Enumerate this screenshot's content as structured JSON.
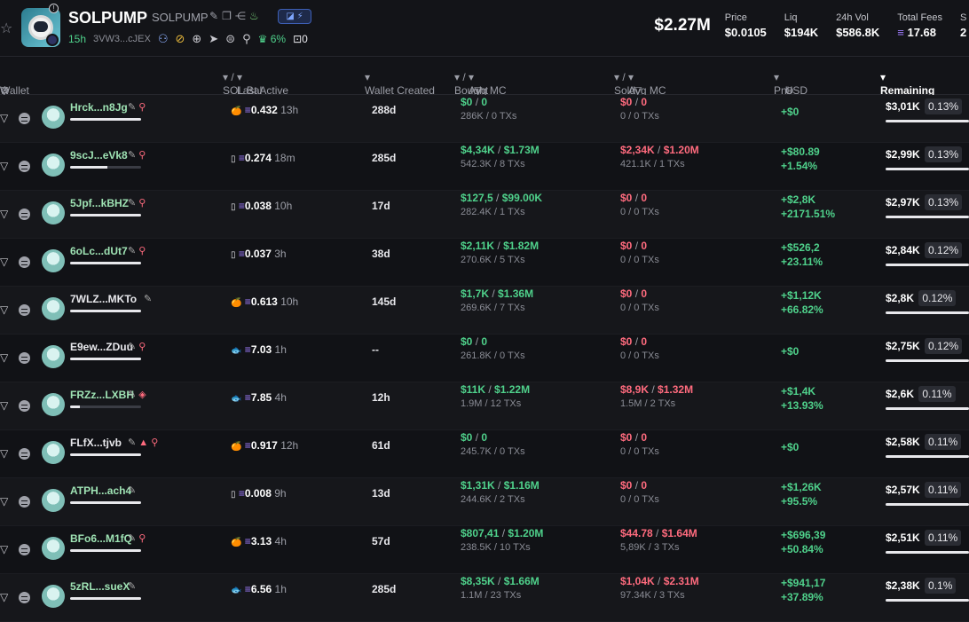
{
  "token": {
    "name": "SOLPUMP",
    "ticker": "SOLPUMP",
    "age": "15h",
    "address": "3VW3...cJEX",
    "holders_pct": "6%",
    "count": "0"
  },
  "stats": {
    "market_cap": "$2.27M",
    "items": [
      {
        "label": "Price",
        "value": "$0.0105"
      },
      {
        "label": "Liq",
        "value": "$194K"
      },
      {
        "label": "24h Vol",
        "value": "$586.8K"
      },
      {
        "label": "Total Fees",
        "value": "17.68"
      },
      {
        "label": "S",
        "value": "2"
      }
    ]
  },
  "columns": {
    "wallet": "Wallet",
    "sol_bal": "SOL Bal",
    "last_active": "Last Active",
    "wallet_created": "Wallet Created",
    "bought": "Bought",
    "bought_mc": "Avg MC",
    "sold": "Sold",
    "sold_mc": "Avg MC",
    "pnl": "Pnl",
    "usd": "USD",
    "remaining": "Remaining"
  },
  "rows": [
    {
      "wallet": "Hrck...n8Jg",
      "sol": "0.432",
      "active": "13h",
      "created": "288d",
      "b_val": "$0",
      "b_mc": "0",
      "b_sub": "286K / 0 TXs",
      "s_val": "$0",
      "s_mc": "0",
      "s_sub": "0 / 0 TXs",
      "pnl1": "+$0",
      "pnl2": "",
      "rem": "$3,01K",
      "rem_pct": "0.13%",
      "wbar": 100,
      "rbar": 100
    },
    {
      "wallet": "9scJ...eVk8",
      "sol": "0.274",
      "active": "18m",
      "created": "285d",
      "b_val": "$4,34K",
      "b_mc": "$1.73M",
      "b_sub": "542.3K / 8 TXs",
      "s_val": "$2,34K",
      "s_mc": "$1.20M",
      "s_sub": "421.1K / 1 TXs",
      "pnl1": "+$80.89",
      "pnl2": "+1.54%",
      "rem": "$2,99K",
      "rem_pct": "0.13%",
      "wbar": 52,
      "rbar": 100
    },
    {
      "wallet": "5Jpf...kBHZ",
      "sol": "0.038",
      "active": "10h",
      "created": "17d",
      "b_val": "$127,5",
      "b_mc": "$99.00K",
      "b_sub": "282.4K / 1 TXs",
      "s_val": "$0",
      "s_mc": "0",
      "s_sub": "0 / 0 TXs",
      "pnl1": "+$2,8K",
      "pnl2": "+2171.51%",
      "rem": "$2,97K",
      "rem_pct": "0.13%",
      "wbar": 100,
      "rbar": 100
    },
    {
      "wallet": "6oLc...dUt7",
      "sol": "0.037",
      "active": "3h",
      "created": "38d",
      "b_val": "$2,11K",
      "b_mc": "$1.82M",
      "b_sub": "270.6K / 5 TXs",
      "s_val": "$0",
      "s_mc": "0",
      "s_sub": "0 / 0 TXs",
      "pnl1": "+$526,2",
      "pnl2": "+23.11%",
      "rem": "$2,84K",
      "rem_pct": "0.12%",
      "wbar": 100,
      "rbar": 100
    },
    {
      "wallet": "7WLZ...MKTo",
      "sol": "0.613",
      "active": "10h",
      "created": "145d",
      "b_val": "$1,7K",
      "b_mc": "$1.36M",
      "b_sub": "269.6K / 7 TXs",
      "s_val": "$0",
      "s_mc": "0",
      "s_sub": "0 / 0 TXs",
      "pnl1": "+$1,12K",
      "pnl2": "+66.82%",
      "rem": "$2,8K",
      "rem_pct": "0.12%",
      "wbar": 100,
      "rbar": 100
    },
    {
      "wallet": "E9ew...ZDuu",
      "sol": "7.03",
      "active": "1h",
      "created": "--",
      "b_val": "$0",
      "b_mc": "0",
      "b_sub": "261.8K / 0 TXs",
      "s_val": "$0",
      "s_mc": "0",
      "s_sub": "0 / 0 TXs",
      "pnl1": "+$0",
      "pnl2": "",
      "rem": "$2,75K",
      "rem_pct": "0.12%",
      "wbar": 100,
      "rbar": 100
    },
    {
      "wallet": "FRZz...LXBH",
      "sol": "7.85",
      "active": "4h",
      "created": "12h",
      "b_val": "$11K",
      "b_mc": "$1.22M",
      "b_sub": "1.9M / 12 TXs",
      "s_val": "$8,9K",
      "s_mc": "$1.32M",
      "s_sub": "1.5M / 2 TXs",
      "pnl1": "+$1,4K",
      "pnl2": "+13.93%",
      "rem": "$2,6K",
      "rem_pct": "0.11%",
      "wbar": 14,
      "rbar": 100
    },
    {
      "wallet": "FLfX...tjvb",
      "sol": "0.917",
      "active": "12h",
      "created": "61d",
      "b_val": "$0",
      "b_mc": "0",
      "b_sub": "245.7K / 0 TXs",
      "s_val": "$0",
      "s_mc": "0",
      "s_sub": "0 / 0 TXs",
      "pnl1": "+$0",
      "pnl2": "",
      "rem": "$2,58K",
      "rem_pct": "0.11%",
      "wbar": 100,
      "rbar": 100
    },
    {
      "wallet": "ATPH...ach4",
      "sol": "0.008",
      "active": "9h",
      "created": "13d",
      "b_val": "$1,31K",
      "b_mc": "$1.16M",
      "b_sub": "244.6K / 2 TXs",
      "s_val": "$0",
      "s_mc": "0",
      "s_sub": "0 / 0 TXs",
      "pnl1": "+$1,26K",
      "pnl2": "+95.5%",
      "rem": "$2,57K",
      "rem_pct": "0.11%",
      "wbar": 100,
      "rbar": 100
    },
    {
      "wallet": "BFo6...M1fQ",
      "sol": "3.13",
      "active": "4h",
      "created": "57d",
      "b_val": "$807,41",
      "b_mc": "$1.20M",
      "b_sub": "238.5K / 10 TXs",
      "s_val": "$44.78",
      "s_mc": "$1.64M",
      "s_sub": "5,89K / 3 TXs",
      "pnl1": "+$696,39",
      "pnl2": "+50.84%",
      "rem": "$2,51K",
      "rem_pct": "0.11%",
      "wbar": 100,
      "rbar": 100
    },
    {
      "wallet": "5zRL...sueX",
      "sol": "6.56",
      "active": "1h",
      "created": "285d",
      "b_val": "$8,35K",
      "b_mc": "$1.66M",
      "b_sub": "1.1M / 23 TXs",
      "s_val": "$1,04K",
      "s_mc": "$2.31M",
      "s_sub": "97.34K / 3 TXs",
      "pnl1": "+$941,17",
      "pnl2": "+37.89%",
      "rem": "$2,38K",
      "rem_pct": "0.1%",
      "wbar": 100,
      "rbar": 100
    }
  ]
}
